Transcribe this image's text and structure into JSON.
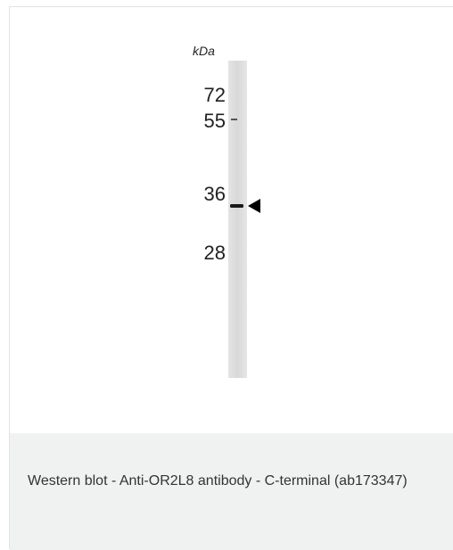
{
  "figure": {
    "unit_label": "kDa",
    "markers": [
      "72",
      "55",
      "36",
      "28"
    ]
  },
  "caption": "Western blot - Anti-OR2L8 antibody - C-terminal (ab173347)"
}
